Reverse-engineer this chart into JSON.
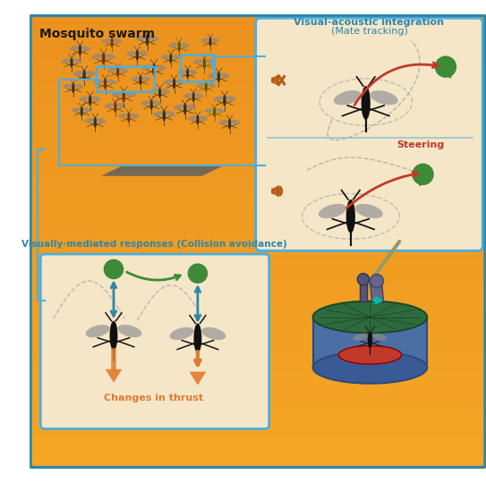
{
  "bg_color": "#F5A623",
  "border_color": "#2E86AB",
  "title": "Mosquito swarm",
  "title_color": "#1a1a1a",
  "title_fontsize": 10,
  "visual_acoustic_title": "Visual-acoustic integration",
  "visual_acoustic_subtitle": "(Mate tracking)",
  "visual_acoustic_color": "#2E86AB",
  "collision_title": "Visually-mediated responses (Collision avoidance)",
  "collision_color": "#2E86AB",
  "steering_text": "Steering",
  "steering_color": "#C0392B",
  "thrust_text": "Changes in thrust",
  "thrust_color": "#E07B30",
  "green_ball_color": "#3D8B37",
  "dashed_line_color": "#999999",
  "red_arrow_color": "#C0392B",
  "green_arrow_color": "#3D8B37",
  "blue_arrow_color": "#2E86AB",
  "orange_arrow_color": "#E07B30",
  "box_bg": "#F5E6C8",
  "panel_border": "#4AAFE0",
  "platform_color": "#606060",
  "speaker_color": "#B85C1A"
}
